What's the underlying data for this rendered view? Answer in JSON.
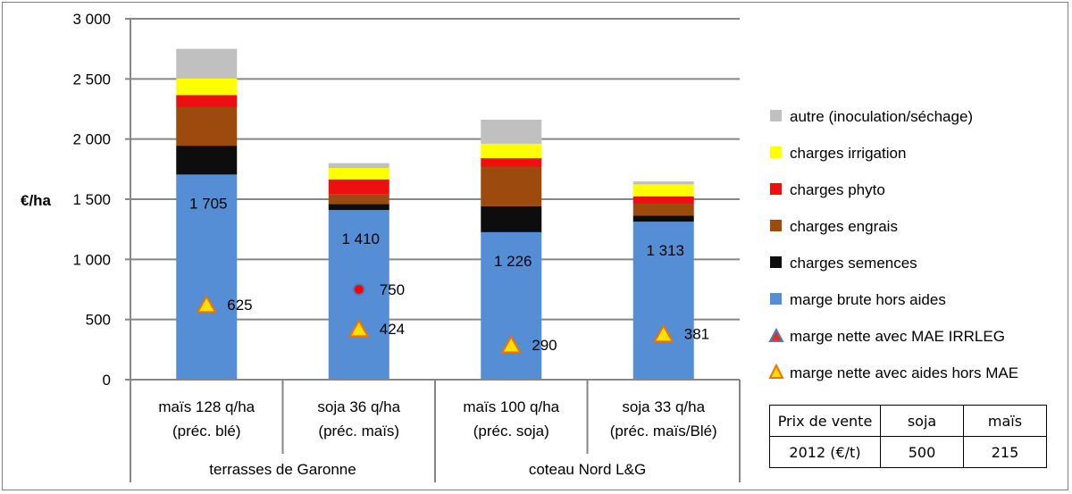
{
  "chart_data": {
    "type": "bar",
    "stacked": true,
    "ylabel": "€/ha",
    "ylim": [
      0,
      3000
    ],
    "ytick_step": 500,
    "ytick_labels": [
      "0",
      "500",
      "1 000",
      "1 500",
      "2 000",
      "2 500",
      "3 000"
    ],
    "grid": true,
    "categories": [
      "maïs 128 q/ha (préc. blé)",
      "soja 36 q/ha (préc. maïs)",
      "maïs 100 q/ha (préc. soja)",
      "soja 33 q/ha (préc. maïs/Blé)"
    ],
    "category_lines": [
      [
        "maïs 128 q/ha",
        "(préc. blé)"
      ],
      [
        "soja 36 q/ha",
        "(préc. maïs)"
      ],
      [
        "maïs 100 q/ha",
        "(préc. soja)"
      ],
      [
        "soja 33 q/ha",
        "(préc. maïs/Blé)"
      ]
    ],
    "groups": [
      {
        "label": "terrasses de Garonne",
        "categories": [
          0,
          1
        ]
      },
      {
        "label": "coteau Nord L&G",
        "categories": [
          2,
          3
        ]
      }
    ],
    "series": [
      {
        "name": "marge brute hors aides",
        "color": "#558ED5",
        "values": [
          1705,
          1410,
          1226,
          1313
        ],
        "labels": [
          "1 705",
          "1 410",
          "1 226",
          "1 313"
        ]
      },
      {
        "name": "charges semences",
        "color": "#0D0D0D",
        "values": [
          240,
          50,
          215,
          50
        ]
      },
      {
        "name": "charges engrais",
        "color": "#9C4A0E",
        "values": [
          320,
          80,
          330,
          100
        ]
      },
      {
        "name": "charges phyto",
        "color": "#EE1010",
        "values": [
          100,
          125,
          70,
          60
        ]
      },
      {
        "name": "charges irrigation",
        "color": "#FFFF00",
        "values": [
          140,
          95,
          120,
          100
        ]
      },
      {
        "name": "autre (inoculation/séchage)",
        "color": "#C0C0C0",
        "values": [
          245,
          40,
          200,
          25
        ]
      }
    ],
    "legend_order": [
      5,
      4,
      3,
      2,
      1,
      0
    ],
    "markers": [
      {
        "name": "marge nette avec MAE IRRLEG",
        "shape": "circle",
        "points": [
          {
            "category": 1,
            "value": 750,
            "label": "750"
          }
        ]
      },
      {
        "name": "marge nette avec aides hors MAE",
        "shape": "triangle",
        "points": [
          {
            "category": 0,
            "value": 625,
            "label": "625"
          },
          {
            "category": 1,
            "value": 424,
            "label": "424"
          },
          {
            "category": 2,
            "value": 290,
            "label": "290"
          },
          {
            "category": 3,
            "value": 381,
            "label": "381"
          }
        ]
      }
    ],
    "legend_position": "right"
  },
  "price_table": {
    "title_line1": "Prix de vente",
    "title_line2": "2012 (€/t)",
    "columns": [
      "soja",
      "maïs"
    ],
    "values": [
      "500",
      "215"
    ]
  }
}
